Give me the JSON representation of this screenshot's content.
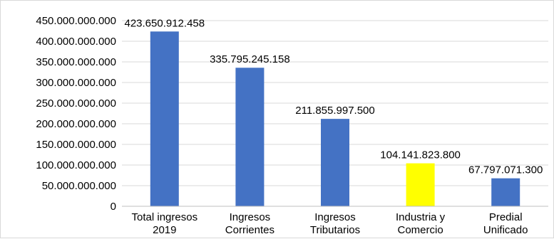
{
  "chart_data": {
    "type": "bar",
    "categories": [
      [
        "Total ingresos",
        "2019"
      ],
      [
        "Ingresos",
        "Corrientes"
      ],
      [
        "Ingresos",
        "Tributarios"
      ],
      [
        "Industria y",
        "Comercio"
      ],
      [
        "Predial",
        "Unificado"
      ]
    ],
    "values": [
      423650912458,
      335795245158,
      211855997500,
      104141823800,
      67797071300
    ],
    "data_labels": [
      "423.650.912.458",
      "335.795.245.158",
      "211.855.997.500",
      "104.141.823.800",
      "67.797.071.300"
    ],
    "bar_colors": [
      "#4472c4",
      "#4472c4",
      "#4472c4",
      "#ffff00",
      "#4472c4"
    ],
    "ylim": [
      0,
      450000000000
    ],
    "yticks": [
      0,
      50000000000,
      100000000000,
      150000000000,
      200000000000,
      250000000000,
      300000000000,
      350000000000,
      400000000000,
      450000000000
    ],
    "ytick_labels": [
      "0",
      "50.000.000.000",
      "100.000.000.000",
      "150.000.000.000",
      "200.000.000.000",
      "250.000.000.000",
      "300.000.000.000",
      "350.000.000.000",
      "400.000.000.000",
      "450.000.000.000"
    ],
    "grid": true,
    "gridline_color": "#d9d9d9",
    "axis_color": "#bfbfbf",
    "title": "",
    "xlabel": "",
    "ylabel": ""
  }
}
